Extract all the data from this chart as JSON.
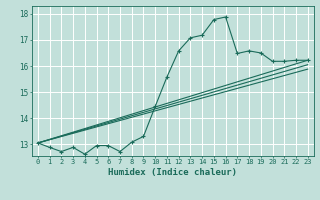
{
  "xlabel": "Humidex (Indice chaleur)",
  "xlim": [
    -0.5,
    23.5
  ],
  "ylim": [
    12.55,
    18.3
  ],
  "xticks": [
    0,
    1,
    2,
    3,
    4,
    5,
    6,
    7,
    8,
    9,
    10,
    11,
    12,
    13,
    14,
    15,
    16,
    17,
    18,
    19,
    20,
    21,
    22,
    23
  ],
  "yticks": [
    13,
    14,
    15,
    16,
    17,
    18
  ],
  "bg_color": "#c2e0da",
  "line_color": "#1a6b5a",
  "grid_color": "#e8f5f2",
  "line1_x": [
    0,
    1,
    2,
    3,
    4,
    5,
    6,
    7,
    8,
    9,
    10,
    11,
    12,
    13,
    14,
    15,
    16,
    17,
    18,
    19,
    20,
    21,
    22,
    23
  ],
  "line1_y": [
    13.05,
    12.88,
    12.72,
    12.88,
    12.62,
    12.95,
    12.95,
    12.72,
    13.08,
    13.3,
    14.45,
    15.58,
    16.58,
    17.08,
    17.18,
    17.78,
    17.88,
    16.48,
    16.58,
    16.5,
    16.18,
    16.18,
    16.22,
    16.22
  ],
  "line2_x": [
    0,
    23
  ],
  "line2_y": [
    13.05,
    16.22
  ],
  "line3_x": [
    0,
    23
  ],
  "line3_y": [
    13.05,
    16.05
  ],
  "line4_x": [
    0,
    23
  ],
  "line4_y": [
    13.05,
    15.88
  ]
}
